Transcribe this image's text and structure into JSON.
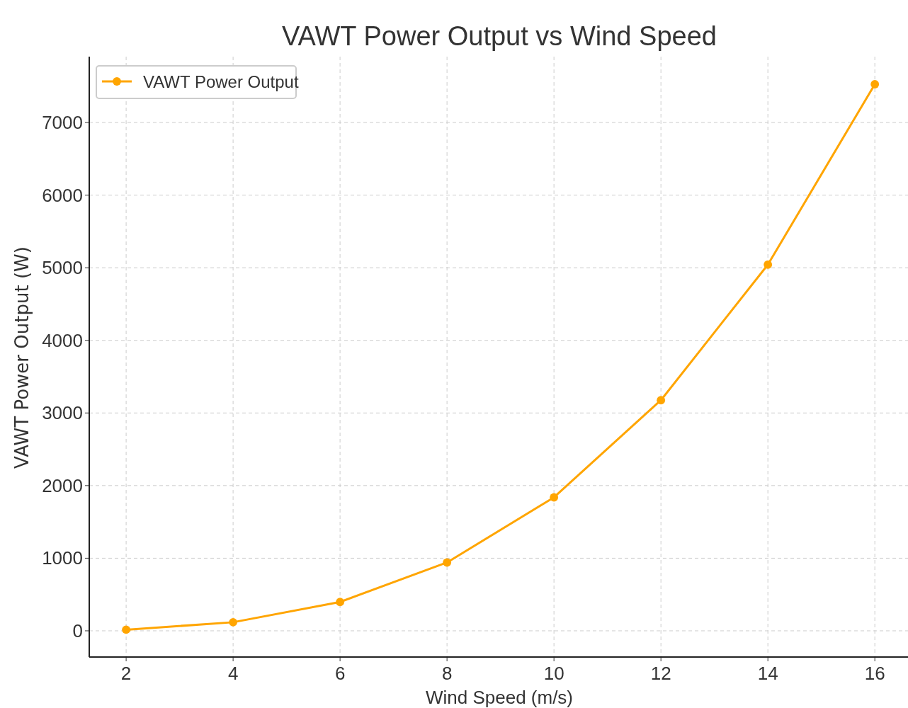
{
  "chart_data": {
    "type": "line",
    "title": "VAWT Power Output vs Wind Speed",
    "xlabel": "Wind Speed (m/s)",
    "ylabel": "VAWT Power Output (W)",
    "x": [
      2,
      4,
      6,
      8,
      10,
      12,
      14,
      16
    ],
    "series": [
      {
        "name": "VAWT Power Output",
        "color": "#ffa500",
        "values": [
          15,
          118,
          397,
          941,
          1838,
          3176,
          5043,
          7527
        ]
      }
    ],
    "xlim": [
      1.31,
      16.62
    ],
    "ylim": [
      -361,
      7907
    ],
    "xticks": [
      2,
      4,
      6,
      8,
      10,
      12,
      14,
      16
    ],
    "yticks": [
      0,
      1000,
      2000,
      3000,
      4000,
      5000,
      6000,
      7000
    ],
    "grid": true,
    "legend": "top left",
    "marker": "circle",
    "line_style": "solid"
  }
}
